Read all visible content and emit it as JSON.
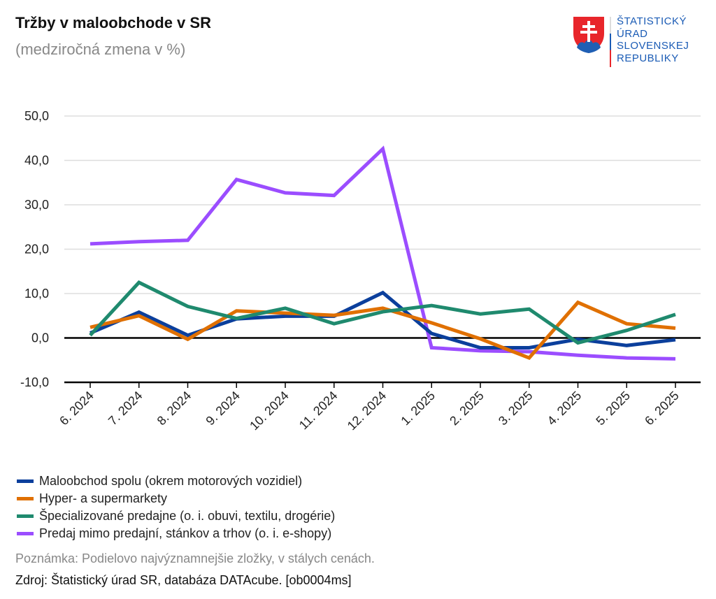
{
  "chart_data": {
    "type": "line",
    "title": "Tržby v maloobchode v SR",
    "subtitle": "(medziročná zmena v %)",
    "categories": [
      "6. 2024",
      "7. 2024",
      "8. 2024",
      "9. 2024",
      "10. 2024",
      "11. 2024",
      "12. 2024",
      "1. 2025",
      "2. 2025",
      "3. 2025",
      "4. 2025",
      "5. 2025",
      "6. 2025"
    ],
    "ylim": [
      -10,
      50
    ],
    "yticks": [
      "-10,0",
      "0,0",
      "10,0",
      "20,0",
      "30,0",
      "40,0",
      "50,0"
    ],
    "grid": true,
    "legend_position": "bottom",
    "series": [
      {
        "name": "Maloobchod spolu (okrem motorových vozidiel)",
        "color": "#0b3f9c",
        "values": [
          1.1,
          5.8,
          0.6,
          4.3,
          4.9,
          4.9,
          10.2,
          1.0,
          -2.2,
          -2.2,
          -0.3,
          -1.7,
          -0.4
        ]
      },
      {
        "name": "Hyper- a supermarkety",
        "color": "#e07000",
        "values": [
          2.4,
          5.0,
          -0.3,
          6.1,
          5.6,
          5.1,
          6.7,
          3.4,
          -0.2,
          -4.5,
          8.0,
          3.2,
          2.2
        ]
      },
      {
        "name": "Špecializované predajne (o. i. obuvi, textilu, drogérie)",
        "color": "#1f8a6e",
        "values": [
          0.6,
          12.5,
          7.1,
          4.4,
          6.7,
          3.2,
          5.9,
          7.3,
          5.4,
          6.5,
          -1.1,
          1.7,
          5.3
        ]
      },
      {
        "name": "Predaj mimo predajní, stánkov a trhov (o. i. e-shopy)",
        "color": "#9b4dff",
        "values": [
          21.2,
          21.7,
          22.0,
          35.7,
          32.7,
          32.1,
          42.6,
          -2.2,
          -2.9,
          -3.1,
          -3.9,
          -4.5,
          -4.7
        ]
      }
    ]
  },
  "logo": {
    "lines": [
      "ŠTATISTICKÝ",
      "ÚRAD",
      "SLOVENSKEJ",
      "REPUBLIKY"
    ]
  },
  "note": "Poznámka: Podielovo najvýznamnejšie zložky, v stálych cenách.",
  "source": "Zdroj: Štatistický úrad SR, databáza DATAcube. [ob0004ms]"
}
